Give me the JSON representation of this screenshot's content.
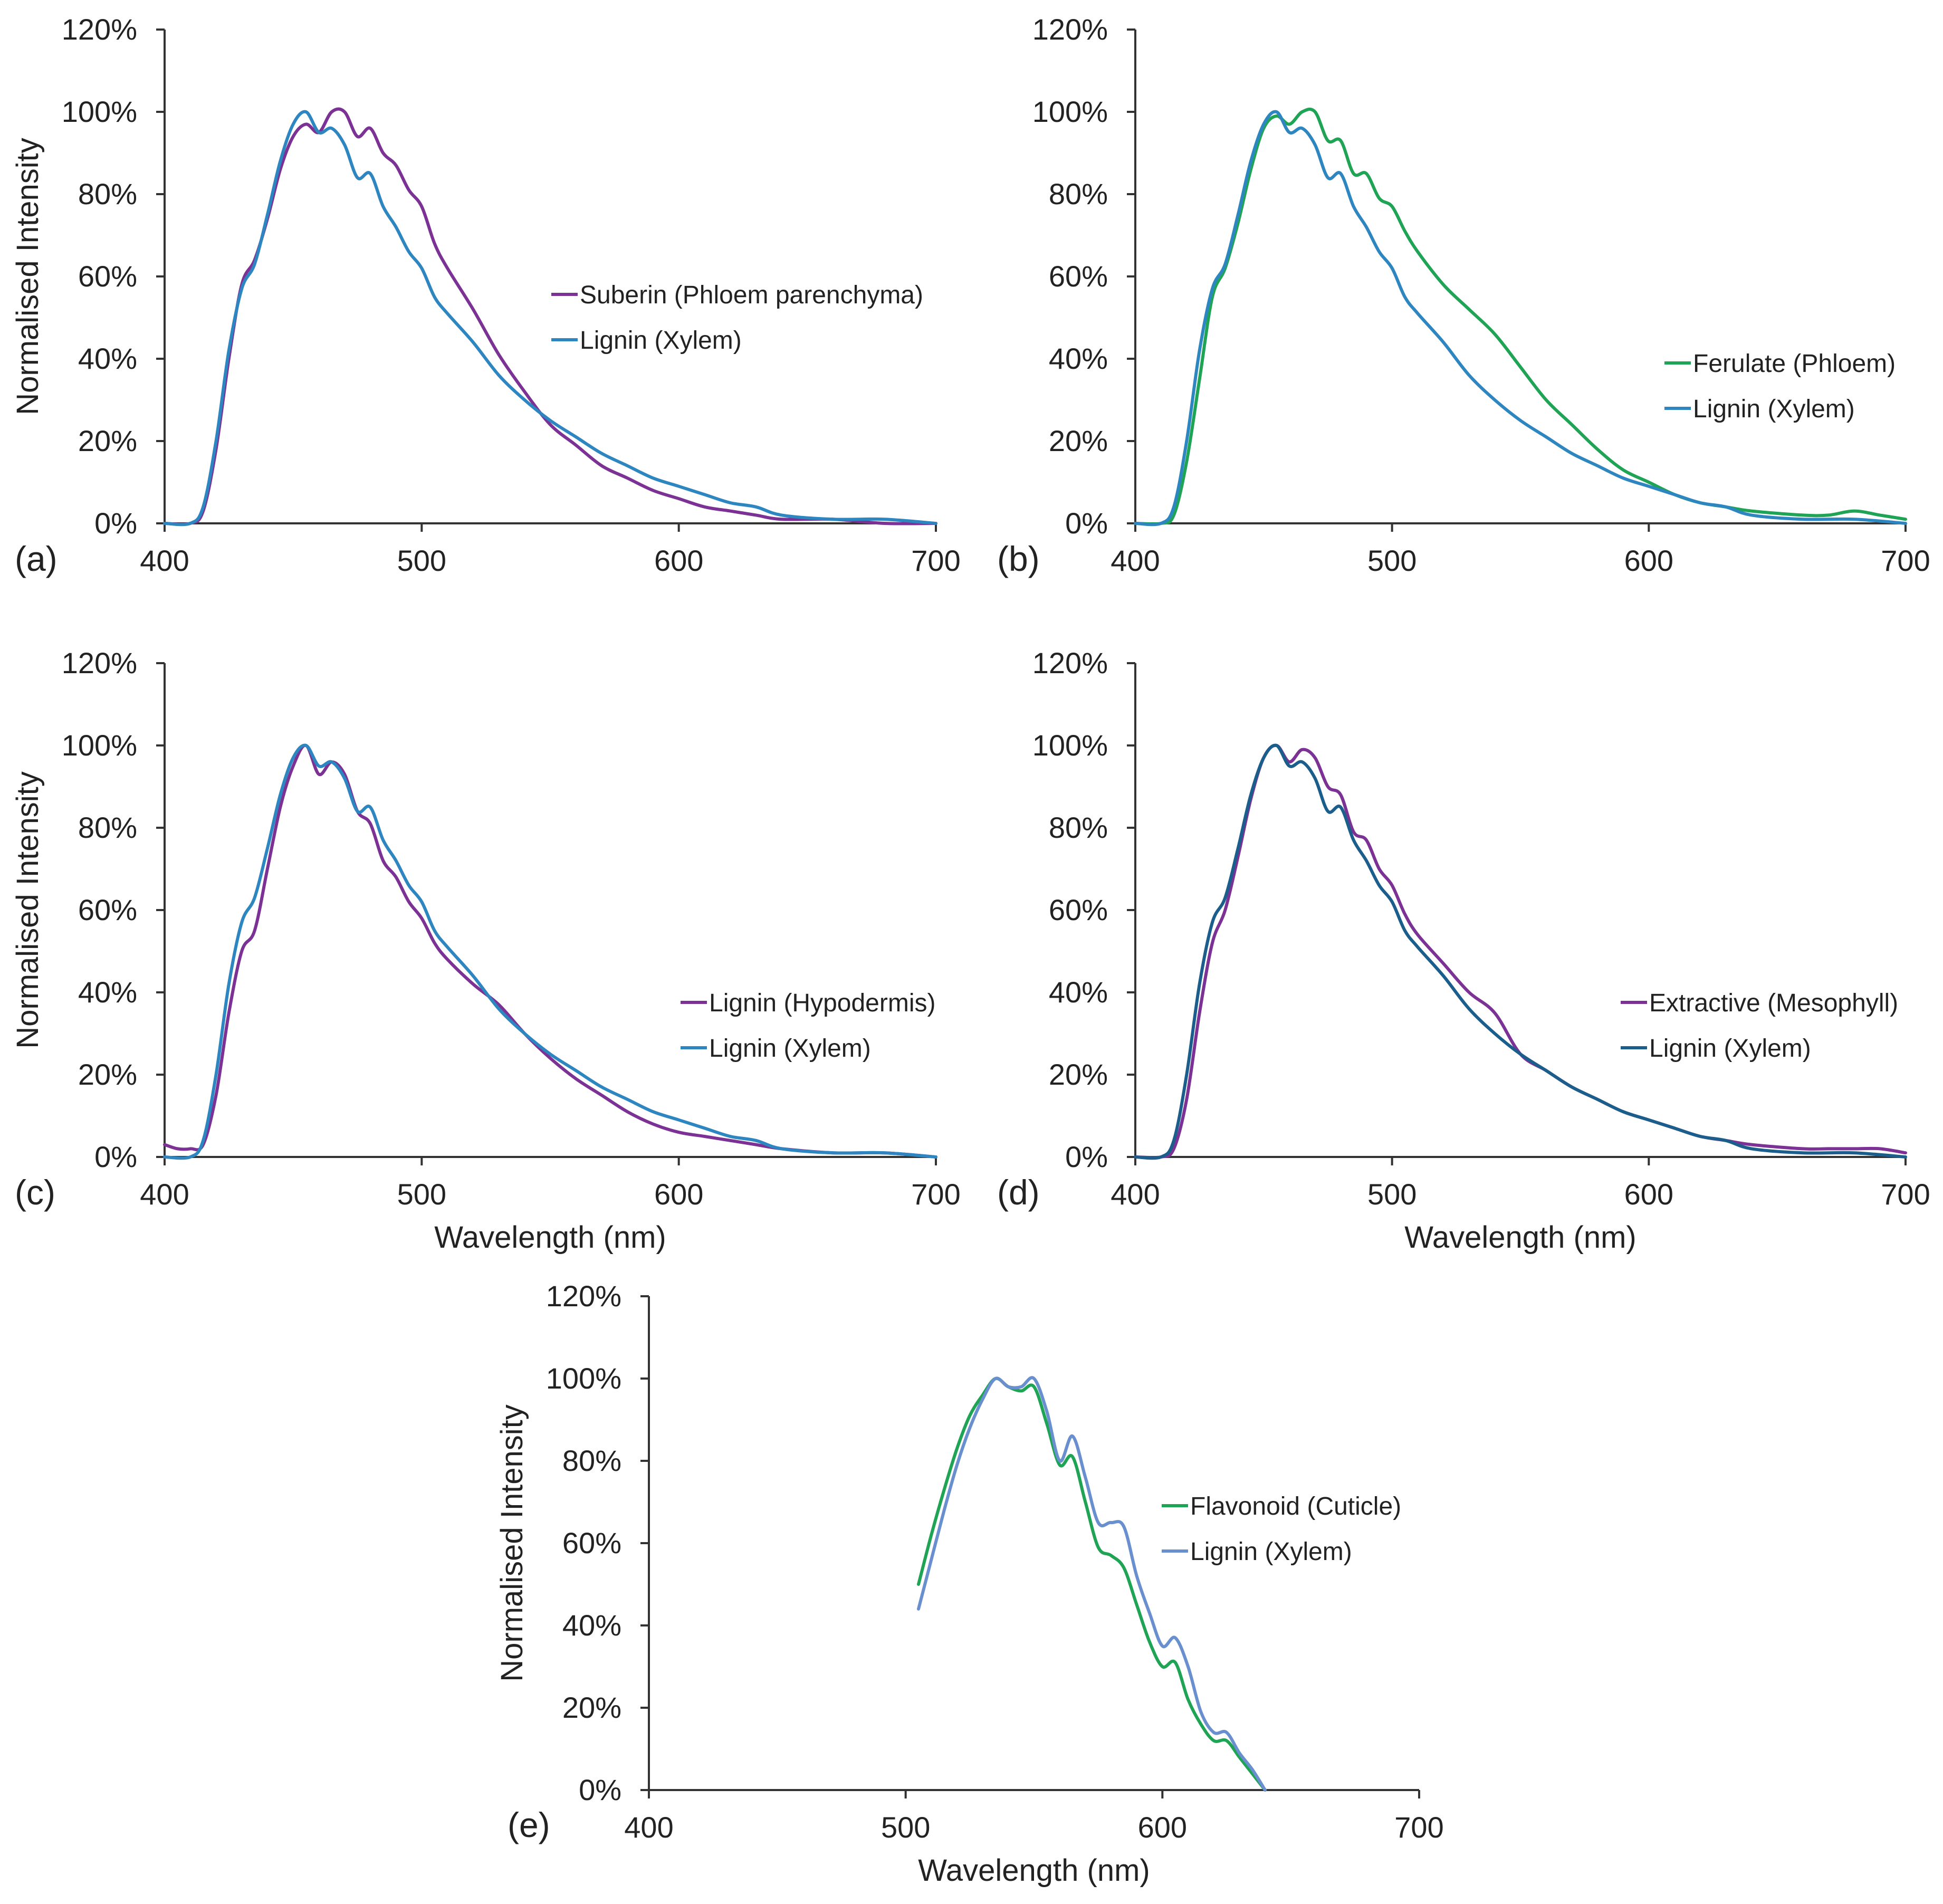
{
  "chart_data": [
    {
      "type": "line",
      "panel_label": "(a)",
      "xlabel": "",
      "ylabel": "Normalised Intensity",
      "xlim": [
        400,
        700
      ],
      "ylim": [
        0,
        120
      ],
      "x_ticks": [
        "400",
        "500",
        "600",
        "700"
      ],
      "y_ticks": [
        "0%",
        "20%",
        "40%",
        "60%",
        "80%",
        "100%",
        "120%"
      ],
      "legend_position": "center-right",
      "series": [
        {
          "name": "Suberin (Phloem parenchyma)",
          "color": "#7B3294",
          "x": [
            400,
            410,
            415,
            420,
            425,
            430,
            435,
            440,
            445,
            450,
            455,
            460,
            465,
            470,
            475,
            480,
            485,
            490,
            495,
            500,
            505,
            510,
            520,
            530,
            540,
            550,
            560,
            570,
            580,
            590,
            600,
            610,
            620,
            630,
            640,
            660,
            680,
            700
          ],
          "y": [
            0,
            0,
            3,
            18,
            40,
            58,
            64,
            74,
            86,
            94,
            97,
            95,
            100,
            100,
            94,
            96,
            90,
            87,
            81,
            77,
            68,
            62,
            52,
            41,
            32,
            24,
            19,
            14,
            11,
            8,
            6,
            4,
            3,
            2,
            1,
            1,
            0,
            0
          ]
        },
        {
          "name": "Lignin (Xylem)",
          "color": "#2E86C1",
          "x": [
            400,
            410,
            415,
            420,
            425,
            430,
            435,
            440,
            445,
            450,
            455,
            460,
            465,
            470,
            475,
            480,
            485,
            490,
            495,
            500,
            505,
            510,
            520,
            530,
            540,
            550,
            560,
            570,
            580,
            590,
            600,
            610,
            620,
            630,
            640,
            660,
            680,
            700
          ],
          "y": [
            0,
            0,
            4,
            20,
            42,
            57,
            63,
            75,
            88,
            97,
            100,
            95,
            96,
            92,
            84,
            85,
            77,
            72,
            66,
            62,
            55,
            51,
            44,
            36,
            30,
            25,
            21,
            17,
            14,
            11,
            9,
            7,
            5,
            4,
            2,
            1,
            1,
            0
          ]
        }
      ]
    },
    {
      "type": "line",
      "panel_label": "(b)",
      "xlabel": "",
      "ylabel": "",
      "xlim": [
        400,
        700
      ],
      "ylim": [
        0,
        120
      ],
      "x_ticks": [
        "400",
        "500",
        "600",
        "700"
      ],
      "y_ticks": [
        "0%",
        "20%",
        "40%",
        "60%",
        "80%",
        "100%",
        "120%"
      ],
      "legend_position": "center-right",
      "series": [
        {
          "name": "Ferulate (Phloem)",
          "color": "#1FA354",
          "x": [
            400,
            410,
            415,
            420,
            425,
            430,
            435,
            440,
            445,
            450,
            455,
            460,
            465,
            470,
            475,
            480,
            485,
            490,
            495,
            500,
            505,
            510,
            520,
            530,
            540,
            550,
            560,
            570,
            580,
            590,
            600,
            610,
            620,
            630,
            640,
            660,
            670,
            680,
            690,
            700
          ],
          "y": [
            0,
            0,
            2,
            15,
            35,
            55,
            62,
            73,
            86,
            96,
            99,
            97,
            100,
            100,
            93,
            93,
            85,
            85,
            79,
            77,
            71,
            66,
            58,
            52,
            46,
            38,
            30,
            24,
            18,
            13,
            10,
            7,
            5,
            4,
            3,
            2,
            2,
            3,
            2,
            1
          ]
        },
        {
          "name": "Lignin (Xylem)",
          "color": "#2E86C1",
          "x": [
            400,
            410,
            415,
            420,
            425,
            430,
            435,
            440,
            445,
            450,
            455,
            460,
            465,
            470,
            475,
            480,
            485,
            490,
            495,
            500,
            505,
            510,
            520,
            530,
            540,
            550,
            560,
            570,
            580,
            590,
            600,
            610,
            620,
            630,
            640,
            660,
            680,
            700
          ],
          "y": [
            0,
            0,
            4,
            20,
            42,
            57,
            63,
            75,
            88,
            97,
            100,
            95,
            96,
            92,
            84,
            85,
            77,
            72,
            66,
            62,
            55,
            51,
            44,
            36,
            30,
            25,
            21,
            17,
            14,
            11,
            9,
            7,
            5,
            4,
            2,
            1,
            1,
            0
          ]
        }
      ]
    },
    {
      "type": "line",
      "panel_label": "(c)",
      "xlabel": "Wavelength (nm)",
      "ylabel": "Normalised Intensity",
      "xlim": [
        400,
        700
      ],
      "ylim": [
        0,
        120
      ],
      "x_ticks": [
        "400",
        "500",
        "600",
        "700"
      ],
      "y_ticks": [
        "0%",
        "20%",
        "40%",
        "60%",
        "80%",
        "100%",
        "120%"
      ],
      "legend_position": "bottom-right",
      "series": [
        {
          "name": "Lignin (Hypodermis)",
          "color": "#7B3294",
          "x": [
            400,
            405,
            410,
            415,
            420,
            425,
            430,
            435,
            440,
            445,
            450,
            455,
            460,
            465,
            470,
            475,
            480,
            485,
            490,
            495,
            500,
            505,
            510,
            520,
            530,
            540,
            550,
            560,
            570,
            580,
            590,
            600,
            610,
            620,
            630,
            640,
            660,
            680,
            700
          ],
          "y": [
            3,
            2,
            2,
            3,
            15,
            35,
            50,
            55,
            70,
            85,
            95,
            100,
            93,
            96,
            93,
            84,
            81,
            72,
            68,
            62,
            58,
            52,
            48,
            42,
            37,
            30,
            24,
            19,
            15,
            11,
            8,
            6,
            5,
            4,
            3,
            2,
            1,
            1,
            0
          ]
        },
        {
          "name": "Lignin (Xylem)",
          "color": "#2E86C1",
          "x": [
            400,
            410,
            415,
            420,
            425,
            430,
            435,
            440,
            445,
            450,
            455,
            460,
            465,
            470,
            475,
            480,
            485,
            490,
            495,
            500,
            505,
            510,
            520,
            530,
            540,
            550,
            560,
            570,
            580,
            590,
            600,
            610,
            620,
            630,
            640,
            660,
            680,
            700
          ],
          "y": [
            0,
            0,
            4,
            20,
            42,
            57,
            63,
            75,
            88,
            97,
            100,
            95,
            96,
            92,
            84,
            85,
            77,
            72,
            66,
            62,
            55,
            51,
            44,
            36,
            30,
            25,
            21,
            17,
            14,
            11,
            9,
            7,
            5,
            4,
            2,
            1,
            1,
            0
          ]
        }
      ]
    },
    {
      "type": "line",
      "panel_label": "(d)",
      "xlabel": "Wavelength (nm)",
      "ylabel": "",
      "xlim": [
        400,
        700
      ],
      "ylim": [
        0,
        120
      ],
      "x_ticks": [
        "400",
        "500",
        "600",
        "700"
      ],
      "y_ticks": [
        "0%",
        "20%",
        "40%",
        "60%",
        "80%",
        "100%",
        "120%"
      ],
      "legend_position": "bottom-right",
      "series": [
        {
          "name": "Extractive (Mesophyll)",
          "color": "#7B3294",
          "x": [
            400,
            410,
            415,
            420,
            425,
            430,
            435,
            440,
            445,
            450,
            455,
            460,
            465,
            470,
            475,
            480,
            485,
            490,
            495,
            500,
            505,
            510,
            520,
            530,
            540,
            550,
            560,
            570,
            580,
            590,
            600,
            610,
            620,
            630,
            640,
            660,
            670,
            680,
            690,
            700
          ],
          "y": [
            0,
            0,
            2,
            14,
            35,
            52,
            60,
            73,
            87,
            97,
            100,
            96,
            99,
            97,
            90,
            88,
            79,
            77,
            70,
            66,
            59,
            54,
            47,
            40,
            35,
            25,
            21,
            17,
            14,
            11,
            9,
            7,
            5,
            4,
            3,
            2,
            2,
            2,
            2,
            1
          ]
        },
        {
          "name": "Lignin (Xylem)",
          "color": "#1B5E8C",
          "x": [
            400,
            410,
            415,
            420,
            425,
            430,
            435,
            440,
            445,
            450,
            455,
            460,
            465,
            470,
            475,
            480,
            485,
            490,
            495,
            500,
            505,
            510,
            520,
            530,
            540,
            550,
            560,
            570,
            580,
            590,
            600,
            610,
            620,
            630,
            640,
            660,
            680,
            700
          ],
          "y": [
            0,
            0,
            4,
            20,
            42,
            57,
            63,
            75,
            88,
            97,
            100,
            95,
            96,
            92,
            84,
            85,
            77,
            72,
            66,
            62,
            55,
            51,
            44,
            36,
            30,
            25,
            21,
            17,
            14,
            11,
            9,
            7,
            5,
            4,
            2,
            1,
            1,
            0
          ]
        }
      ]
    },
    {
      "type": "line",
      "panel_label": "(e)",
      "xlabel": "Wavelength (nm)",
      "ylabel": "Normalised Intensity",
      "xlim": [
        400,
        700
      ],
      "ylim": [
        0,
        120
      ],
      "x_ticks": [
        "400",
        "500",
        "600",
        "700"
      ],
      "y_ticks": [
        "0%",
        "20%",
        "40%",
        "60%",
        "80%",
        "100%",
        "120%"
      ],
      "legend_position": "center-right",
      "series": [
        {
          "name": "Flavonoid (Cuticle)",
          "color": "#1FA354",
          "x": [
            505,
            510,
            515,
            520,
            525,
            530,
            535,
            540,
            545,
            550,
            555,
            560,
            565,
            570,
            575,
            580,
            585,
            590,
            595,
            600,
            605,
            610,
            615,
            620,
            625,
            630,
            635,
            640
          ],
          "y": [
            50,
            62,
            73,
            83,
            91,
            96,
            100,
            98,
            97,
            98,
            89,
            79,
            81,
            70,
            59,
            57,
            54,
            45,
            36,
            30,
            31,
            22,
            16,
            12,
            12,
            8,
            4,
            0
          ]
        },
        {
          "name": "Lignin (Xylem)",
          "color": "#6A8FCF",
          "x": [
            505,
            510,
            515,
            520,
            525,
            530,
            535,
            540,
            545,
            550,
            555,
            560,
            565,
            570,
            575,
            580,
            585,
            590,
            595,
            600,
            605,
            610,
            615,
            620,
            625,
            630,
            635,
            640
          ],
          "y": [
            44,
            56,
            68,
            79,
            88,
            95,
            100,
            98,
            98,
            100,
            92,
            80,
            86,
            76,
            65,
            65,
            64,
            52,
            43,
            35,
            37,
            30,
            19,
            14,
            14,
            9,
            5,
            0
          ]
        }
      ]
    }
  ]
}
